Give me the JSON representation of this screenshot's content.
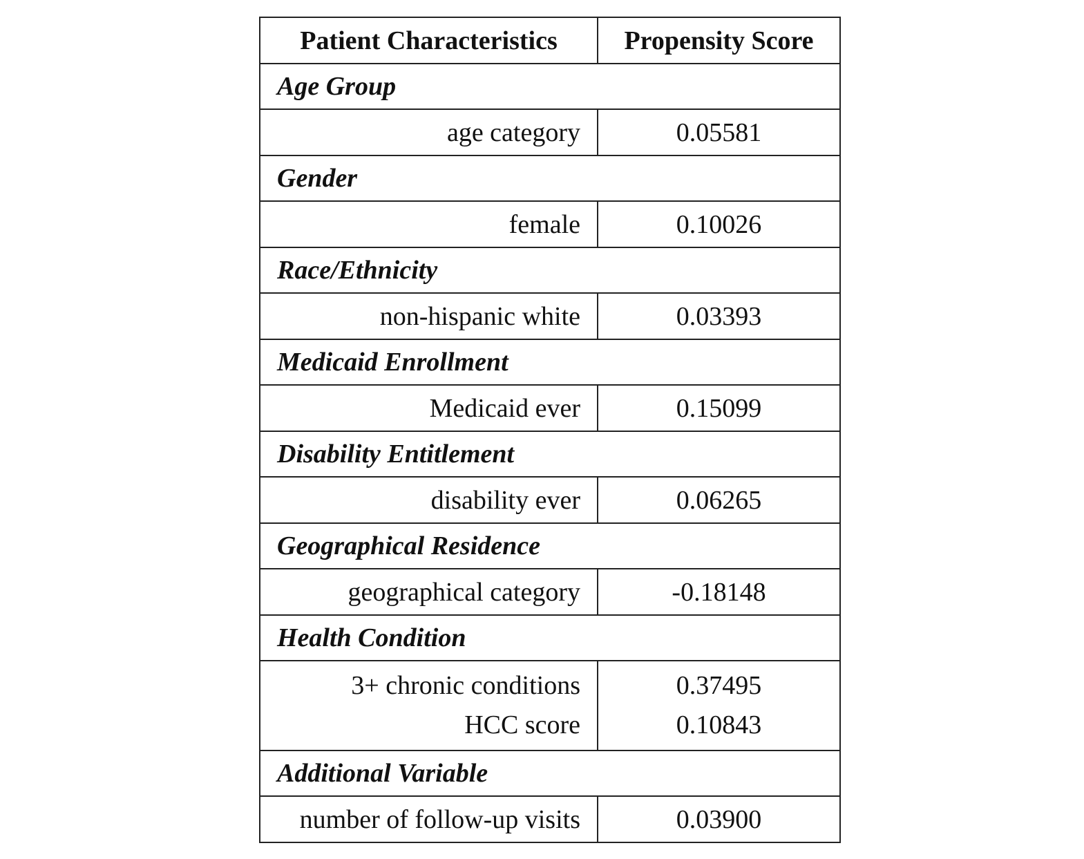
{
  "table": {
    "headers": {
      "characteristic": "Patient Characteristics",
      "score": "Propensity Score"
    },
    "groups": [
      {
        "title": "Age Group",
        "items": [
          {
            "label": "age category",
            "score": "0.05581"
          }
        ]
      },
      {
        "title": "Gender",
        "items": [
          {
            "label": "female",
            "score": "0.10026"
          }
        ]
      },
      {
        "title": "Race/Ethnicity",
        "items": [
          {
            "label": "non-hispanic white",
            "score": "0.03393"
          }
        ]
      },
      {
        "title": "Medicaid Enrollment",
        "items": [
          {
            "label": "Medicaid ever",
            "score": "0.15099"
          }
        ]
      },
      {
        "title": "Disability Entitlement",
        "items": [
          {
            "label": "disability ever",
            "score": "0.06265"
          }
        ]
      },
      {
        "title": "Geographical Residence",
        "items": [
          {
            "label": "geographical category",
            "score": "-0.18148"
          }
        ]
      },
      {
        "title": "Health Condition",
        "items": [
          {
            "label": "3+ chronic conditions",
            "score": "0.37495"
          },
          {
            "label": "HCC score",
            "score": "0.10843"
          }
        ]
      },
      {
        "title": "Additional Variable",
        "items": [
          {
            "label": "number of follow-up visits",
            "score": "0.03900"
          }
        ]
      }
    ]
  }
}
